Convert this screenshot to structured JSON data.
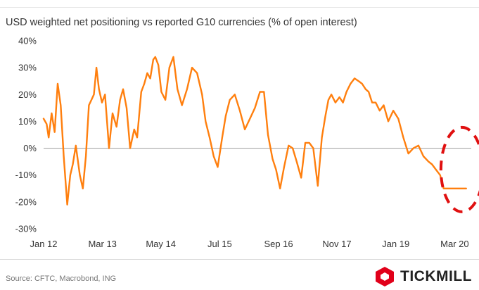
{
  "title": "USD weighted net positioning vs reported G10 currencies (% of open interest)",
  "source": "Source: CFTC, Macrobond, ING",
  "brand": {
    "name": "TICKMILL",
    "color": "#e1001a"
  },
  "colors": {
    "line": "#ff7f0e",
    "highlight": "#e01010",
    "zero_line": "#9e9e9e",
    "tick_text": "#333333"
  },
  "chart_data": {
    "type": "line",
    "title": "USD weighted net positioning vs reported G10 currencies (% of open interest)",
    "xlabel": "",
    "ylabel": "",
    "ylim": [
      -30,
      40
    ],
    "yticks": [
      40,
      30,
      20,
      10,
      0,
      -10,
      -20,
      -30
    ],
    "ytick_labels": [
      "40%",
      "30%",
      "20%",
      "10%",
      "0%",
      "-10%",
      "-20%",
      "-30%"
    ],
    "xlim": [
      2012.0,
      2020.5
    ],
    "xticks": [
      2012.0,
      2013.17,
      2014.33,
      2015.5,
      2016.67,
      2017.83,
      2019.0,
      2020.17
    ],
    "xtick_labels": [
      "Jan 12",
      "Mar 13",
      "May 14",
      "Jul 15",
      "Sep 16",
      "Nov 17",
      "Jan 19",
      "Mar 20"
    ],
    "grid": false,
    "legend": "none",
    "annotation": "dashed red ellipse around latest readings",
    "series": [
      {
        "x": [
          2012.0,
          2012.06,
          2012.1,
          2012.16,
          2012.22,
          2012.28,
          2012.34,
          2012.4,
          2012.47,
          2012.53,
          2012.58,
          2012.64,
          2012.72,
          2012.78,
          2012.84,
          2012.9,
          2012.95,
          2013.0,
          2013.05,
          2013.1,
          2013.16,
          2013.22,
          2013.3,
          2013.37,
          2013.45,
          2013.52,
          2013.58,
          2013.65,
          2013.72,
          2013.8,
          2013.86,
          2013.94,
          2014.0,
          2014.06,
          2014.12,
          2014.18,
          2014.22,
          2014.28,
          2014.34,
          2014.42,
          2014.5,
          2014.58,
          2014.66,
          2014.75,
          2014.85,
          2014.95,
          2015.05,
          2015.15,
          2015.22,
          2015.3,
          2015.38,
          2015.46,
          2015.55,
          2015.62,
          2015.7,
          2015.8,
          2015.9,
          2016.0,
          2016.1,
          2016.2,
          2016.3,
          2016.38,
          2016.46,
          2016.55,
          2016.62,
          2016.7,
          2016.78,
          2016.87,
          2016.95,
          2017.03,
          2017.12,
          2017.2,
          2017.28,
          2017.36,
          2017.45,
          2017.53,
          2017.6,
          2017.66,
          2017.72,
          2017.8,
          2017.88,
          2017.95,
          2018.02,
          2018.1,
          2018.18,
          2018.26,
          2018.33,
          2018.4,
          2018.46,
          2018.53,
          2018.6,
          2018.68,
          2018.76,
          2018.85,
          2018.95,
          2019.05,
          2019.15,
          2019.25,
          2019.35,
          2019.45,
          2019.55,
          2019.65,
          2019.72,
          2019.8,
          2019.88,
          2019.95,
          2020.0,
          2020.05,
          2020.1,
          2020.15,
          2020.2,
          2020.25,
          2020.3,
          2020.35,
          2020.4
        ],
        "values": [
          11,
          9,
          4,
          13,
          6,
          24,
          16,
          -3,
          -21,
          -10,
          -6,
          1,
          -10,
          -15,
          -3,
          16,
          18,
          20,
          30,
          22,
          17,
          20,
          0,
          13,
          8,
          18,
          22,
          15,
          0,
          7,
          4,
          21,
          24,
          28,
          26,
          33,
          34,
          31,
          21,
          18,
          30,
          34,
          22,
          16,
          22,
          30,
          28,
          20,
          10,
          4,
          -3,
          -7,
          4,
          12,
          18,
          20,
          14,
          7,
          11,
          15,
          21,
          21,
          5,
          -4,
          -8,
          -15,
          -7,
          1,
          0,
          -5,
          -11,
          2,
          2,
          0,
          -14,
          4,
          12,
          18,
          20,
          17,
          19,
          17,
          21,
          24,
          26,
          25,
          24,
          22,
          21,
          17,
          17,
          14,
          16,
          10,
          14,
          11,
          4,
          -2,
          0,
          1,
          -3,
          -5,
          -6,
          -8,
          -10,
          -15,
          -15,
          -15,
          -15,
          -15,
          -15,
          -15,
          -15,
          -15,
          -15
        ]
      }
    ]
  }
}
